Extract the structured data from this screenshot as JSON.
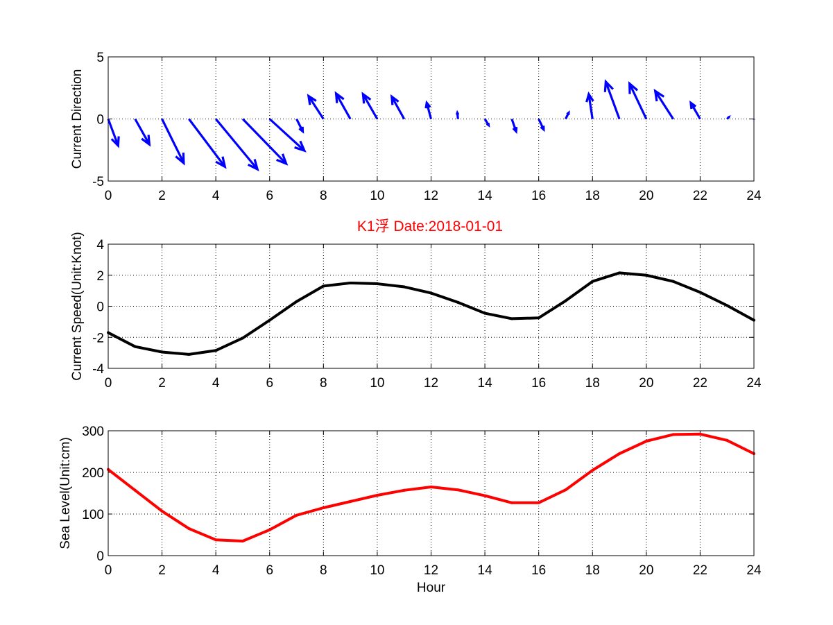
{
  "figure": {
    "title": "K1浮   Date:2018-01-01",
    "title_color": "#ff0000"
  },
  "chart_data": [
    {
      "type": "quiver",
      "ylabel": "Current Direction",
      "xlim": [
        0,
        24
      ],
      "ylim": [
        -5,
        5
      ],
      "xticks": [
        "0",
        "2",
        "4",
        "6",
        "8",
        "10",
        "12",
        "14",
        "16",
        "18",
        "20",
        "22",
        "24"
      ],
      "yticks": [
        "-5",
        "0",
        "5"
      ],
      "grid": true,
      "color": "#0000ff",
      "x": [
        0,
        1,
        2,
        3,
        4,
        5,
        6,
        7,
        8,
        9,
        10,
        11,
        12,
        13,
        14,
        15,
        16,
        17,
        18,
        19,
        20,
        21,
        22,
        23,
        24
      ],
      "u": [
        0.8,
        1.15,
        1.75,
        2.9,
        3.35,
        3.5,
        2.8,
        0.5,
        -1.2,
        -1.15,
        -1.15,
        -1.0,
        -0.35,
        -0.05,
        0.3,
        0.35,
        0.4,
        0.25,
        -0.3,
        -1.1,
        -1.35,
        -1.45,
        -0.75,
        0.15,
        0.0
      ],
      "v": [
        -2.15,
        -2.05,
        -3.55,
        -3.85,
        -4.05,
        -3.6,
        -2.55,
        -1.0,
        1.85,
        2.05,
        2.0,
        1.8,
        1.3,
        0.5,
        -0.5,
        -1.0,
        -0.85,
        0.5,
        2.0,
        3.0,
        2.85,
        2.25,
        1.3,
        0.15,
        -0.05
      ]
    },
    {
      "type": "line",
      "ylabel": "Current Speed(Unit:Knot)",
      "xlim": [
        0,
        24
      ],
      "ylim": [
        -4,
        4
      ],
      "xticks": [
        "0",
        "2",
        "4",
        "6",
        "8",
        "10",
        "12",
        "14",
        "16",
        "18",
        "20",
        "22",
        "24"
      ],
      "yticks": [
        "-4",
        "-2",
        "0",
        "2",
        "4"
      ],
      "grid": true,
      "color": "#000000",
      "x": [
        0,
        1,
        2,
        3,
        4,
        5,
        6,
        7,
        8,
        9,
        10,
        11,
        12,
        13,
        14,
        15,
        16,
        17,
        18,
        19,
        20,
        21,
        22,
        23,
        24
      ],
      "y": [
        -1.7,
        -2.6,
        -2.95,
        -3.1,
        -2.85,
        -2.05,
        -0.9,
        0.3,
        1.3,
        1.5,
        1.45,
        1.25,
        0.85,
        0.25,
        -0.45,
        -0.8,
        -0.75,
        0.35,
        1.6,
        2.15,
        2.0,
        1.6,
        0.9,
        0.05,
        -0.9
      ]
    },
    {
      "type": "line",
      "ylabel": "Sea Level(Unit:cm)",
      "xlabel": "Hour",
      "xlim": [
        0,
        24
      ],
      "ylim": [
        0,
        300
      ],
      "xticks": [
        "0",
        "2",
        "4",
        "6",
        "8",
        "10",
        "12",
        "14",
        "16",
        "18",
        "20",
        "22",
        "24"
      ],
      "yticks": [
        "0",
        "100",
        "200",
        "300"
      ],
      "grid": true,
      "color": "#ff0000",
      "x": [
        0,
        1,
        2,
        3,
        4,
        5,
        6,
        7,
        8,
        9,
        10,
        11,
        12,
        13,
        14,
        15,
        16,
        17,
        18,
        19,
        20,
        21,
        22,
        23,
        24
      ],
      "y": [
        207,
        157,
        107,
        65,
        38,
        35,
        62,
        97,
        115,
        130,
        145,
        157,
        165,
        158,
        144,
        127,
        127,
        158,
        205,
        245,
        275,
        291,
        292,
        277,
        245
      ]
    }
  ]
}
